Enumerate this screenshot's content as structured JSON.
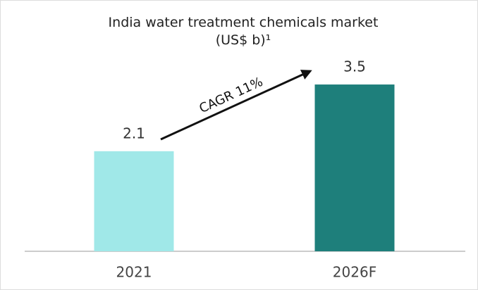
{
  "chart_data": {
    "type": "bar",
    "title": "India water treatment chemicals market (US$ b)¹",
    "categories": [
      "2021",
      "2026F"
    ],
    "values": [
      2.1,
      3.5
    ],
    "colors": [
      "#a0e8e8",
      "#1e7f7b"
    ],
    "annotation": "CAGR 11%"
  }
}
